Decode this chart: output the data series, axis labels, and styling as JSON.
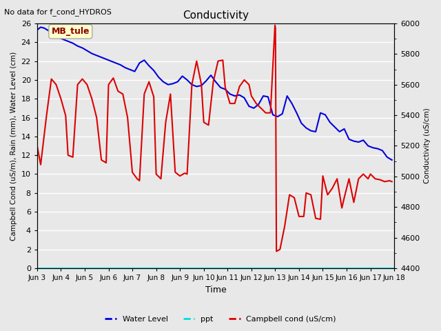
{
  "title": "Conductivity",
  "top_left_text": "No data for f_cond_HYDROS",
  "xlabel": "Time",
  "ylabel_left": "Campbell Cond (uS/m), Rain (mm), Water Level (cm)",
  "ylabel_right": "Conductivity (uS/cm)",
  "ylim_left": [
    0,
    26
  ],
  "ylim_right": [
    4400,
    6000
  ],
  "annotation_box": "MB_tule",
  "x_tick_labels": [
    "Jun 3",
    "Jun 4",
    "Jun 5",
    "Jun 6",
    "Jun 7",
    "Jun 8",
    "Jun 9",
    "Jun 10",
    "Jun 11",
    "Jun 12",
    "Jun 13",
    "Jun 14",
    "Jun 15",
    "Jun 16",
    "Jun 17",
    "Jun 18"
  ],
  "water_level_color": "#0000dd",
  "ppt_color": "#00dddd",
  "campbell_color": "#dd0000",
  "bg_color": "#e8e8e8",
  "water_level_x": [
    0.0,
    0.15,
    0.3,
    0.5,
    0.7,
    0.9,
    1.1,
    1.3,
    1.5,
    1.7,
    1.9,
    2.1,
    2.3,
    2.5,
    2.7,
    2.9,
    3.1,
    3.3,
    3.5,
    3.7,
    3.9,
    4.1,
    4.3,
    4.5,
    4.7,
    4.9,
    5.1,
    5.3,
    5.5,
    5.7,
    5.9,
    6.1,
    6.3,
    6.5,
    6.7,
    6.9,
    7.1,
    7.3,
    7.5,
    7.7,
    7.9,
    8.1,
    8.3,
    8.5,
    8.7,
    8.9,
    9.1,
    9.3,
    9.5,
    9.7,
    9.9,
    10.1,
    10.3,
    10.5,
    10.7,
    10.9,
    11.1,
    11.3,
    11.5,
    11.7,
    11.9,
    12.1,
    12.3,
    12.5,
    12.7,
    12.9,
    13.1,
    13.3,
    13.5,
    13.7,
    13.9,
    14.1,
    14.3,
    14.5,
    14.7,
    14.9
  ],
  "water_level_y": [
    25.3,
    25.6,
    25.5,
    25.2,
    24.8,
    24.5,
    24.3,
    24.1,
    23.9,
    23.6,
    23.4,
    23.1,
    22.8,
    22.6,
    22.4,
    22.2,
    22.0,
    21.8,
    21.6,
    21.3,
    21.1,
    20.9,
    21.8,
    22.1,
    21.5,
    21.0,
    20.3,
    19.8,
    19.5,
    19.6,
    19.8,
    20.4,
    20.0,
    19.5,
    19.3,
    19.4,
    19.9,
    20.5,
    19.8,
    19.2,
    19.0,
    18.5,
    18.3,
    18.4,
    18.1,
    17.2,
    17.0,
    17.4,
    18.3,
    18.2,
    16.3,
    16.1,
    16.4,
    18.3,
    17.5,
    16.5,
    15.4,
    14.9,
    14.6,
    14.5,
    16.5,
    16.3,
    15.5,
    15.0,
    14.5,
    14.8,
    13.7,
    13.5,
    13.4,
    13.6,
    13.0,
    12.8,
    12.7,
    12.5,
    11.8,
    11.5
  ],
  "campbell_x": [
    0.0,
    0.15,
    0.4,
    0.6,
    0.8,
    1.0,
    1.2,
    1.3,
    1.5,
    1.7,
    1.9,
    2.1,
    2.3,
    2.5,
    2.7,
    2.9,
    3.0,
    3.2,
    3.4,
    3.6,
    3.8,
    4.0,
    4.2,
    4.3,
    4.5,
    4.7,
    4.9,
    5.0,
    5.2,
    5.4,
    5.6,
    5.8,
    6.0,
    6.2,
    6.3,
    6.5,
    6.7,
    6.9,
    7.0,
    7.2,
    7.4,
    7.6,
    7.8,
    7.9,
    8.1,
    8.3,
    8.5,
    8.7,
    8.9,
    9.0,
    9.2,
    9.4,
    9.6,
    9.8,
    9.99,
    10.01,
    10.05,
    10.2,
    10.4,
    10.6,
    10.8,
    11.0,
    11.2,
    11.3,
    11.5,
    11.7,
    11.9,
    12.0,
    12.2,
    12.4,
    12.6,
    12.8,
    12.9,
    13.1,
    13.3,
    13.5,
    13.7,
    13.9,
    14.0,
    14.2,
    14.4,
    14.6,
    14.8,
    14.9
  ],
  "campbell_y": [
    13.0,
    11.0,
    16.3,
    20.1,
    19.5,
    18.0,
    16.2,
    12.0,
    11.8,
    19.5,
    20.1,
    19.5,
    18.0,
    16.0,
    11.5,
    11.2,
    19.5,
    20.2,
    18.8,
    18.5,
    16.0,
    10.2,
    9.5,
    9.3,
    18.5,
    19.8,
    18.2,
    10.0,
    9.5,
    15.5,
    18.5,
    10.2,
    9.8,
    10.1,
    10.0,
    19.5,
    22.0,
    19.5,
    15.5,
    15.2,
    19.8,
    22.0,
    22.1,
    19.2,
    17.5,
    17.5,
    19.3,
    20.0,
    19.5,
    18.3,
    17.5,
    17.0,
    16.5,
    16.5,
    25.8,
    25.5,
    1.8,
    2.0,
    4.5,
    7.8,
    7.5,
    5.5,
    5.5,
    8.0,
    7.8,
    5.3,
    5.2,
    9.8,
    7.8,
    8.5,
    9.5,
    6.4,
    7.5,
    9.5,
    7.0,
    9.5,
    10.0,
    9.5,
    10.0,
    9.5,
    9.4,
    9.2,
    9.3,
    9.2
  ]
}
